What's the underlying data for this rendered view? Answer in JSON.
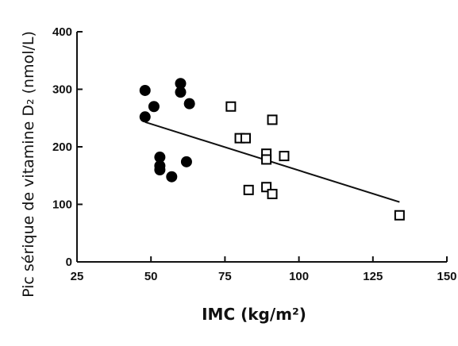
{
  "chart_data": {
    "type": "scatter",
    "xlabel": "IMC (kg/m²)",
    "ylabel": "Pic sérique de vitamine D₂ (nmol/L)",
    "xlim": [
      25,
      150
    ],
    "ylim": [
      0,
      400
    ],
    "xticks": [
      25,
      50,
      75,
      100,
      125,
      150
    ],
    "yticks": [
      0,
      100,
      200,
      300,
      400
    ],
    "series": [
      {
        "marker": "filled-circle",
        "color": "#000000",
        "points": [
          {
            "x": 48,
            "y": 298
          },
          {
            "x": 48,
            "y": 252
          },
          {
            "x": 51,
            "y": 270
          },
          {
            "x": 53,
            "y": 182
          },
          {
            "x": 53,
            "y": 167
          },
          {
            "x": 53,
            "y": 160
          },
          {
            "x": 57,
            "y": 148
          },
          {
            "x": 60,
            "y": 310
          },
          {
            "x": 60,
            "y": 295
          },
          {
            "x": 62,
            "y": 174
          },
          {
            "x": 63,
            "y": 275
          }
        ]
      },
      {
        "marker": "open-square",
        "color": "#000000",
        "points": [
          {
            "x": 77,
            "y": 270
          },
          {
            "x": 80,
            "y": 215
          },
          {
            "x": 82,
            "y": 215
          },
          {
            "x": 83,
            "y": 125
          },
          {
            "x": 89,
            "y": 188
          },
          {
            "x": 89,
            "y": 178
          },
          {
            "x": 89,
            "y": 130
          },
          {
            "x": 91,
            "y": 247
          },
          {
            "x": 91,
            "y": 118
          },
          {
            "x": 95,
            "y": 184
          },
          {
            "x": 134,
            "y": 81
          }
        ]
      }
    ],
    "trendline": {
      "x": [
        48,
        134
      ],
      "y": [
        243,
        104
      ]
    }
  }
}
